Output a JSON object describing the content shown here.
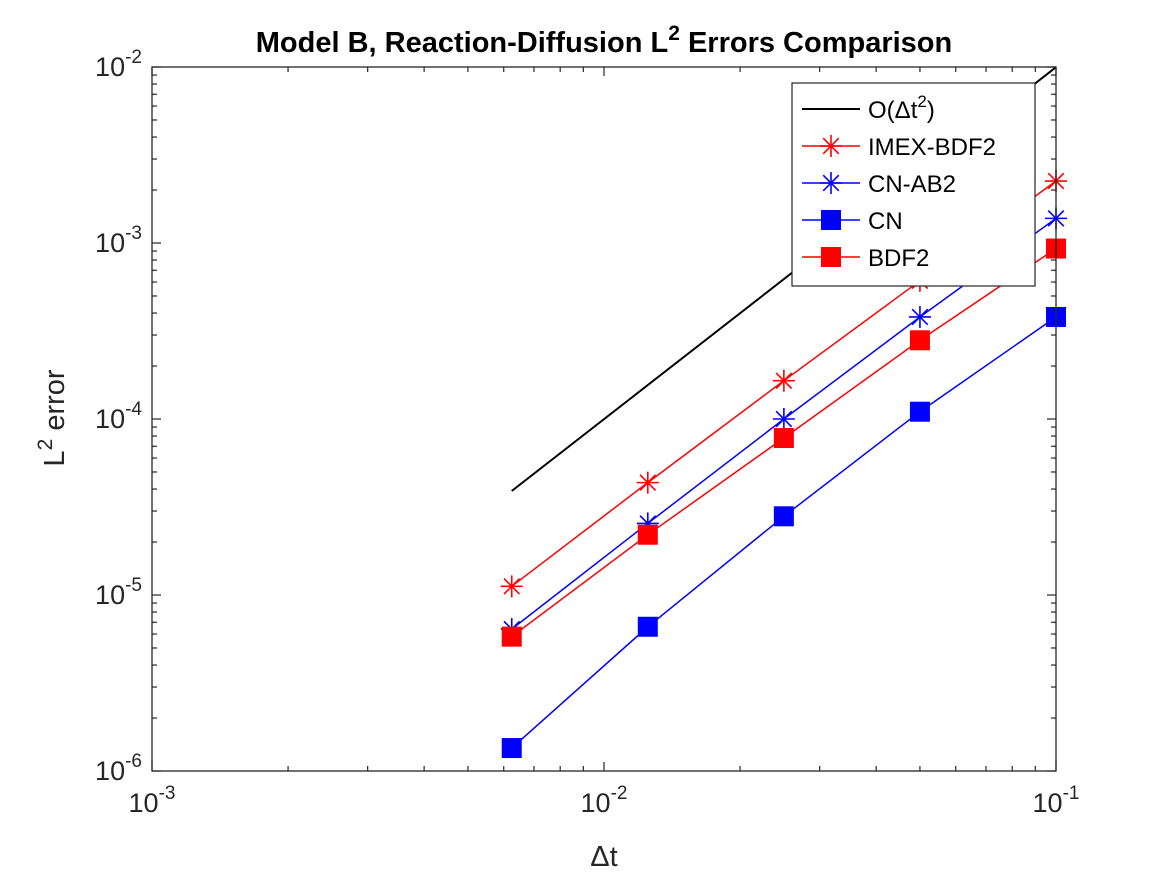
{
  "chart_data": {
    "type": "line",
    "title": "Model B, Reaction-Diffusion L",
    "title_sup": "2",
    "title_suffix": " Errors Comparison",
    "xlabel": "Δt",
    "ylabel": "L",
    "ylabel_sup": "2",
    "ylabel_suffix": " error",
    "xscale": "log",
    "yscale": "log",
    "xlim": [
      0.001,
      0.1
    ],
    "ylim": [
      1e-06,
      0.01
    ],
    "grid": false,
    "legend_position": "top-right",
    "x_ticks": [
      {
        "base": "10",
        "exp": "-3"
      },
      {
        "base": "10",
        "exp": "-2"
      },
      {
        "base": "10",
        "exp": "-1"
      }
    ],
    "y_ticks": [
      {
        "base": "10",
        "exp": "-6"
      },
      {
        "base": "10",
        "exp": "-5"
      },
      {
        "base": "10",
        "exp": "-4"
      },
      {
        "base": "10",
        "exp": "-3"
      },
      {
        "base": "10",
        "exp": "-2"
      }
    ],
    "series": [
      {
        "name": "O(Δt",
        "name_sup": "2",
        "name_suffix": ")",
        "color": "#000000",
        "marker": "none",
        "x": [
          0.00625,
          0.1
        ],
        "y": [
          3.9e-05,
          0.00998
        ]
      },
      {
        "name": "IMEX-BDF2",
        "color": "#ff0000",
        "marker": "star",
        "x": [
          0.00625,
          0.0125,
          0.025,
          0.05,
          0.1
        ],
        "y": [
          1.12e-05,
          4.35e-05,
          0.000165,
          0.00061,
          0.00225
        ]
      },
      {
        "name": "CN-AB2",
        "color": "#0000ff",
        "marker": "star",
        "x": [
          0.00625,
          0.0125,
          0.025,
          0.05,
          0.1
        ],
        "y": [
          6.4e-06,
          2.55e-05,
          0.0001,
          0.00038,
          0.00138
        ]
      },
      {
        "name": "CN",
        "color": "#0000ff",
        "marker": "square",
        "x": [
          0.00625,
          0.0125,
          0.025,
          0.05,
          0.1
        ],
        "y": [
          1.35e-06,
          6.6e-06,
          2.8e-05,
          0.00011,
          0.00038
        ]
      },
      {
        "name": "BDF2",
        "color": "#ff0000",
        "marker": "square",
        "x": [
          0.00625,
          0.0125,
          0.025,
          0.05,
          0.1
        ],
        "y": [
          5.8e-06,
          2.2e-05,
          7.8e-05,
          0.00028,
          0.00093
        ]
      }
    ]
  }
}
